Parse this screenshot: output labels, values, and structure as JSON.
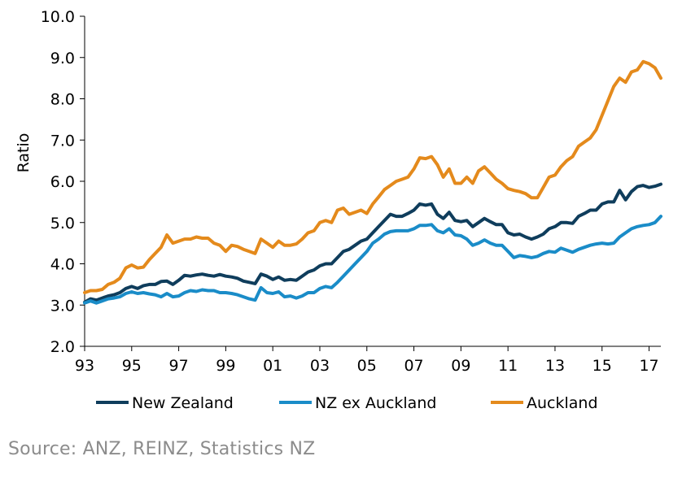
{
  "chart_data": {
    "type": "line",
    "ylabel": "Ratio",
    "ylim": [
      2.0,
      10.0
    ],
    "yticks": [
      "2.0",
      "3.0",
      "4.0",
      "5.0",
      "6.0",
      "7.0",
      "8.0",
      "9.0",
      "10.0"
    ],
    "xlim": [
      1993.0,
      2017.5
    ],
    "xticks": [
      {
        "year": 1993,
        "label": "93"
      },
      {
        "year": 1995,
        "label": "95"
      },
      {
        "year": 1997,
        "label": "97"
      },
      {
        "year": 1999,
        "label": "99"
      },
      {
        "year": 2001,
        "label": "01"
      },
      {
        "year": 2003,
        "label": "03"
      },
      {
        "year": 2005,
        "label": "05"
      },
      {
        "year": 2007,
        "label": "07"
      },
      {
        "year": 2009,
        "label": "09"
      },
      {
        "year": 2011,
        "label": "11"
      },
      {
        "year": 2013,
        "label": "13"
      },
      {
        "year": 2015,
        "label": "15"
      },
      {
        "year": 2017,
        "label": "17"
      }
    ],
    "grid": false,
    "legend_position": "bottom",
    "series": [
      {
        "name": "New Zealand",
        "color": "#0f3d5c",
        "points": [
          [
            1993.0,
            3.07
          ],
          [
            1993.25,
            3.15
          ],
          [
            1993.5,
            3.12
          ],
          [
            1993.75,
            3.17
          ],
          [
            1994.0,
            3.22
          ],
          [
            1994.25,
            3.25
          ],
          [
            1994.5,
            3.3
          ],
          [
            1994.75,
            3.4
          ],
          [
            1995.0,
            3.45
          ],
          [
            1995.25,
            3.4
          ],
          [
            1995.5,
            3.47
          ],
          [
            1995.75,
            3.5
          ],
          [
            1996.0,
            3.5
          ],
          [
            1996.25,
            3.57
          ],
          [
            1996.5,
            3.58
          ],
          [
            1996.75,
            3.5
          ],
          [
            1997.0,
            3.6
          ],
          [
            1997.25,
            3.72
          ],
          [
            1997.5,
            3.7
          ],
          [
            1997.75,
            3.73
          ],
          [
            1998.0,
            3.75
          ],
          [
            1998.25,
            3.72
          ],
          [
            1998.5,
            3.7
          ],
          [
            1998.75,
            3.74
          ],
          [
            1999.0,
            3.7
          ],
          [
            1999.25,
            3.68
          ],
          [
            1999.5,
            3.65
          ],
          [
            1999.75,
            3.58
          ],
          [
            2000.0,
            3.55
          ],
          [
            2000.25,
            3.52
          ],
          [
            2000.5,
            3.75
          ],
          [
            2000.75,
            3.7
          ],
          [
            2001.0,
            3.62
          ],
          [
            2001.25,
            3.68
          ],
          [
            2001.5,
            3.6
          ],
          [
            2001.75,
            3.62
          ],
          [
            2002.0,
            3.6
          ],
          [
            2002.25,
            3.7
          ],
          [
            2002.5,
            3.8
          ],
          [
            2002.75,
            3.85
          ],
          [
            2003.0,
            3.95
          ],
          [
            2003.25,
            4.0
          ],
          [
            2003.5,
            4.0
          ],
          [
            2003.75,
            4.15
          ],
          [
            2004.0,
            4.3
          ],
          [
            2004.25,
            4.35
          ],
          [
            2004.5,
            4.45
          ],
          [
            2004.75,
            4.55
          ],
          [
            2005.0,
            4.6
          ],
          [
            2005.25,
            4.75
          ],
          [
            2005.5,
            4.9
          ],
          [
            2005.75,
            5.05
          ],
          [
            2006.0,
            5.2
          ],
          [
            2006.25,
            5.15
          ],
          [
            2006.5,
            5.15
          ],
          [
            2006.75,
            5.22
          ],
          [
            2007.0,
            5.3
          ],
          [
            2007.25,
            5.45
          ],
          [
            2007.5,
            5.42
          ],
          [
            2007.75,
            5.45
          ],
          [
            2008.0,
            5.2
          ],
          [
            2008.25,
            5.1
          ],
          [
            2008.5,
            5.25
          ],
          [
            2008.75,
            5.05
          ],
          [
            2009.0,
            5.02
          ],
          [
            2009.25,
            5.05
          ],
          [
            2009.5,
            4.9
          ],
          [
            2009.75,
            5.0
          ],
          [
            2010.0,
            5.1
          ],
          [
            2010.25,
            5.02
          ],
          [
            2010.5,
            4.95
          ],
          [
            2010.75,
            4.95
          ],
          [
            2011.0,
            4.75
          ],
          [
            2011.25,
            4.7
          ],
          [
            2011.5,
            4.72
          ],
          [
            2011.75,
            4.65
          ],
          [
            2012.0,
            4.6
          ],
          [
            2012.25,
            4.65
          ],
          [
            2012.5,
            4.72
          ],
          [
            2012.75,
            4.85
          ],
          [
            2013.0,
            4.9
          ],
          [
            2013.25,
            5.0
          ],
          [
            2013.5,
            5.0
          ],
          [
            2013.75,
            4.98
          ],
          [
            2014.0,
            5.15
          ],
          [
            2014.25,
            5.22
          ],
          [
            2014.5,
            5.3
          ],
          [
            2014.75,
            5.3
          ],
          [
            2015.0,
            5.45
          ],
          [
            2015.25,
            5.5
          ],
          [
            2015.5,
            5.5
          ],
          [
            2015.75,
            5.78
          ],
          [
            2016.0,
            5.55
          ],
          [
            2016.25,
            5.75
          ],
          [
            2016.5,
            5.87
          ],
          [
            2016.75,
            5.9
          ],
          [
            2017.0,
            5.85
          ],
          [
            2017.25,
            5.88
          ],
          [
            2017.5,
            5.93
          ]
        ]
      },
      {
        "name": "NZ ex Auckland",
        "color": "#1a8cc8",
        "points": [
          [
            1993.0,
            3.05
          ],
          [
            1993.25,
            3.1
          ],
          [
            1993.5,
            3.05
          ],
          [
            1993.75,
            3.1
          ],
          [
            1994.0,
            3.15
          ],
          [
            1994.25,
            3.17
          ],
          [
            1994.5,
            3.2
          ],
          [
            1994.75,
            3.28
          ],
          [
            1995.0,
            3.32
          ],
          [
            1995.25,
            3.28
          ],
          [
            1995.5,
            3.3
          ],
          [
            1995.75,
            3.27
          ],
          [
            1996.0,
            3.25
          ],
          [
            1996.25,
            3.2
          ],
          [
            1996.5,
            3.28
          ],
          [
            1996.75,
            3.2
          ],
          [
            1997.0,
            3.22
          ],
          [
            1997.25,
            3.3
          ],
          [
            1997.5,
            3.35
          ],
          [
            1997.75,
            3.33
          ],
          [
            1998.0,
            3.37
          ],
          [
            1998.25,
            3.35
          ],
          [
            1998.5,
            3.35
          ],
          [
            1998.75,
            3.3
          ],
          [
            1999.0,
            3.3
          ],
          [
            1999.25,
            3.28
          ],
          [
            1999.5,
            3.25
          ],
          [
            1999.75,
            3.2
          ],
          [
            2000.0,
            3.15
          ],
          [
            2000.25,
            3.12
          ],
          [
            2000.5,
            3.42
          ],
          [
            2000.75,
            3.3
          ],
          [
            2001.0,
            3.28
          ],
          [
            2001.25,
            3.32
          ],
          [
            2001.5,
            3.2
          ],
          [
            2001.75,
            3.22
          ],
          [
            2002.0,
            3.17
          ],
          [
            2002.25,
            3.22
          ],
          [
            2002.5,
            3.3
          ],
          [
            2002.75,
            3.3
          ],
          [
            2003.0,
            3.4
          ],
          [
            2003.25,
            3.45
          ],
          [
            2003.5,
            3.42
          ],
          [
            2003.75,
            3.55
          ],
          [
            2004.0,
            3.7
          ],
          [
            2004.25,
            3.85
          ],
          [
            2004.5,
            4.0
          ],
          [
            2004.75,
            4.15
          ],
          [
            2005.0,
            4.3
          ],
          [
            2005.25,
            4.5
          ],
          [
            2005.5,
            4.6
          ],
          [
            2005.75,
            4.72
          ],
          [
            2006.0,
            4.78
          ],
          [
            2006.25,
            4.8
          ],
          [
            2006.5,
            4.8
          ],
          [
            2006.75,
            4.8
          ],
          [
            2007.0,
            4.85
          ],
          [
            2007.25,
            4.93
          ],
          [
            2007.5,
            4.93
          ],
          [
            2007.75,
            4.95
          ],
          [
            2008.0,
            4.8
          ],
          [
            2008.25,
            4.75
          ],
          [
            2008.5,
            4.85
          ],
          [
            2008.75,
            4.7
          ],
          [
            2009.0,
            4.68
          ],
          [
            2009.25,
            4.6
          ],
          [
            2009.5,
            4.45
          ],
          [
            2009.75,
            4.5
          ],
          [
            2010.0,
            4.58
          ],
          [
            2010.25,
            4.5
          ],
          [
            2010.5,
            4.45
          ],
          [
            2010.75,
            4.45
          ],
          [
            2011.0,
            4.3
          ],
          [
            2011.25,
            4.15
          ],
          [
            2011.5,
            4.2
          ],
          [
            2011.75,
            4.18
          ],
          [
            2012.0,
            4.15
          ],
          [
            2012.25,
            4.18
          ],
          [
            2012.5,
            4.25
          ],
          [
            2012.75,
            4.3
          ],
          [
            2013.0,
            4.28
          ],
          [
            2013.25,
            4.38
          ],
          [
            2013.5,
            4.33
          ],
          [
            2013.75,
            4.28
          ],
          [
            2014.0,
            4.35
          ],
          [
            2014.25,
            4.4
          ],
          [
            2014.5,
            4.45
          ],
          [
            2014.75,
            4.48
          ],
          [
            2015.0,
            4.5
          ],
          [
            2015.25,
            4.48
          ],
          [
            2015.5,
            4.5
          ],
          [
            2015.75,
            4.65
          ],
          [
            2016.0,
            4.75
          ],
          [
            2016.25,
            4.85
          ],
          [
            2016.5,
            4.9
          ],
          [
            2016.75,
            4.93
          ],
          [
            2017.0,
            4.95
          ],
          [
            2017.25,
            5.0
          ],
          [
            2017.5,
            5.15
          ]
        ]
      },
      {
        "name": "Auckland",
        "color": "#e48a1c",
        "points": [
          [
            1993.0,
            3.3
          ],
          [
            1993.25,
            3.35
          ],
          [
            1993.5,
            3.35
          ],
          [
            1993.75,
            3.38
          ],
          [
            1994.0,
            3.5
          ],
          [
            1994.25,
            3.55
          ],
          [
            1994.5,
            3.65
          ],
          [
            1994.75,
            3.9
          ],
          [
            1995.0,
            3.97
          ],
          [
            1995.25,
            3.9
          ],
          [
            1995.5,
            3.92
          ],
          [
            1995.75,
            4.1
          ],
          [
            1996.0,
            4.25
          ],
          [
            1996.25,
            4.4
          ],
          [
            1996.5,
            4.7
          ],
          [
            1996.75,
            4.5
          ],
          [
            1997.0,
            4.55
          ],
          [
            1997.25,
            4.6
          ],
          [
            1997.5,
            4.6
          ],
          [
            1997.75,
            4.65
          ],
          [
            1998.0,
            4.62
          ],
          [
            1998.25,
            4.62
          ],
          [
            1998.5,
            4.5
          ],
          [
            1998.75,
            4.45
          ],
          [
            1999.0,
            4.3
          ],
          [
            1999.25,
            4.45
          ],
          [
            1999.5,
            4.42
          ],
          [
            1999.75,
            4.35
          ],
          [
            2000.0,
            4.3
          ],
          [
            2000.25,
            4.25
          ],
          [
            2000.5,
            4.6
          ],
          [
            2000.75,
            4.5
          ],
          [
            2001.0,
            4.4
          ],
          [
            2001.25,
            4.55
          ],
          [
            2001.5,
            4.45
          ],
          [
            2001.75,
            4.45
          ],
          [
            2002.0,
            4.48
          ],
          [
            2002.25,
            4.6
          ],
          [
            2002.5,
            4.75
          ],
          [
            2002.75,
            4.8
          ],
          [
            2003.0,
            5.0
          ],
          [
            2003.25,
            5.05
          ],
          [
            2003.5,
            5.0
          ],
          [
            2003.75,
            5.3
          ],
          [
            2004.0,
            5.35
          ],
          [
            2004.25,
            5.2
          ],
          [
            2004.5,
            5.25
          ],
          [
            2004.75,
            5.3
          ],
          [
            2005.0,
            5.22
          ],
          [
            2005.25,
            5.45
          ],
          [
            2005.5,
            5.62
          ],
          [
            2005.75,
            5.8
          ],
          [
            2006.0,
            5.9
          ],
          [
            2006.25,
            6.0
          ],
          [
            2006.5,
            6.05
          ],
          [
            2006.75,
            6.1
          ],
          [
            2007.0,
            6.3
          ],
          [
            2007.25,
            6.57
          ],
          [
            2007.5,
            6.55
          ],
          [
            2007.75,
            6.6
          ],
          [
            2008.0,
            6.4
          ],
          [
            2008.25,
            6.1
          ],
          [
            2008.5,
            6.3
          ],
          [
            2008.75,
            5.95
          ],
          [
            2009.0,
            5.95
          ],
          [
            2009.25,
            6.1
          ],
          [
            2009.5,
            5.95
          ],
          [
            2009.75,
            6.25
          ],
          [
            2010.0,
            6.35
          ],
          [
            2010.25,
            6.2
          ],
          [
            2010.5,
            6.05
          ],
          [
            2010.75,
            5.95
          ],
          [
            2011.0,
            5.82
          ],
          [
            2011.25,
            5.78
          ],
          [
            2011.5,
            5.75
          ],
          [
            2011.75,
            5.7
          ],
          [
            2012.0,
            5.6
          ],
          [
            2012.25,
            5.6
          ],
          [
            2012.5,
            5.85
          ],
          [
            2012.75,
            6.1
          ],
          [
            2013.0,
            6.15
          ],
          [
            2013.25,
            6.35
          ],
          [
            2013.5,
            6.5
          ],
          [
            2013.75,
            6.6
          ],
          [
            2014.0,
            6.85
          ],
          [
            2014.25,
            6.95
          ],
          [
            2014.5,
            7.05
          ],
          [
            2014.75,
            7.25
          ],
          [
            2015.0,
            7.6
          ],
          [
            2015.25,
            7.95
          ],
          [
            2015.5,
            8.3
          ],
          [
            2015.75,
            8.5
          ],
          [
            2016.0,
            8.4
          ],
          [
            2016.25,
            8.65
          ],
          [
            2016.5,
            8.7
          ],
          [
            2016.75,
            8.9
          ],
          [
            2017.0,
            8.85
          ],
          [
            2017.25,
            8.75
          ],
          [
            2017.5,
            8.5
          ]
        ]
      }
    ]
  },
  "source_text": "Source: ANZ, REINZ, Statistics NZ"
}
